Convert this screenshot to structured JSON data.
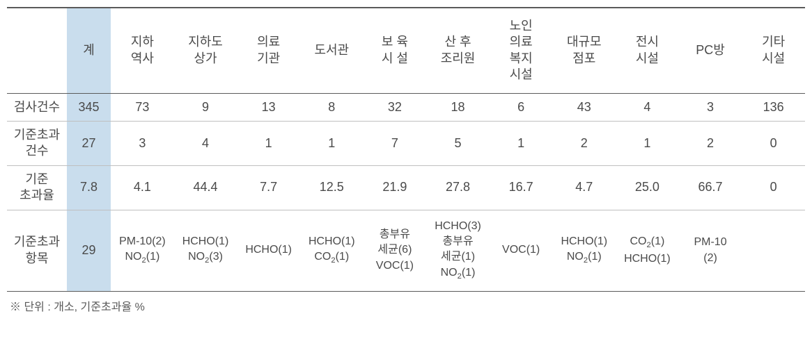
{
  "columns": {
    "label": "",
    "total": "계",
    "headers": [
      "지하\n역사",
      "지하도\n상가",
      "의료\n기관",
      "도서관",
      "보 육\n시 설",
      "산 후\n조리원",
      "노인\n의료\n복지\n시설",
      "대규모\n점포",
      "전시\n시설",
      "PC방",
      "기타\n시설"
    ]
  },
  "rows": [
    {
      "label": "검사건수",
      "total": "345",
      "cells": [
        "73",
        "9",
        "13",
        "8",
        "32",
        "18",
        "6",
        "43",
        "4",
        "3",
        "136"
      ]
    },
    {
      "label": "기준초과\n건수",
      "total": "27",
      "cells": [
        "3",
        "4",
        "1",
        "1",
        "7",
        "5",
        "1",
        "2",
        "1",
        "2",
        "0"
      ]
    },
    {
      "label": "기준\n초과율",
      "total": "7.8",
      "cells": [
        "4.1",
        "44.4",
        "7.7",
        "12.5",
        "21.9",
        "27.8",
        "16.7",
        "4.7",
        "25.0",
        "66.7",
        "0"
      ]
    }
  ],
  "items_row": {
    "label": "기준초과\n항목",
    "total": "29",
    "cells": [
      "PM-10(2)\nNO₂(1)",
      "HCHO(1)\nNO₂(3)",
      "HCHO(1)",
      "HCHO(1)\nCO₂(1)",
      "총부유\n세균(6)\nVOC(1)",
      "HCHO(3)\n총부유\n세균(1)\nNO₂(1)",
      "VOC(1)",
      "HCHO(1)\nNO₂(1)",
      "CO₂(1)\nHCHO(1)",
      "PM-10\n(2)",
      ""
    ]
  },
  "footnote": "※ 단위 : 개소, 기준초과율 %",
  "style": {
    "highlight_color": "#c9dded",
    "border_top_color": "#5a5a5a",
    "row_border_color": "#bfbfbf",
    "text_color": "#4a4a4a",
    "header_fontsize": 18,
    "body_fontsize": 18,
    "items_fontsize": 16,
    "footnote_fontsize": 16
  }
}
